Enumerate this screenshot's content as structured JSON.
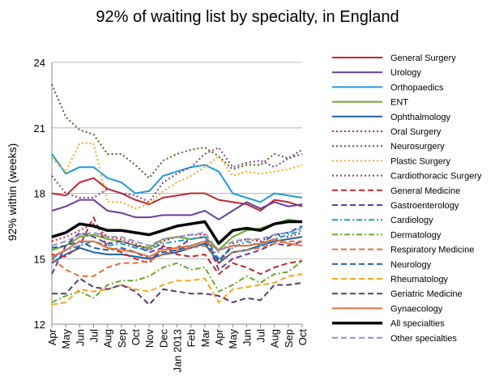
{
  "chart_data": {
    "type": "line",
    "title": "92% of waiting list by specialty, in England",
    "ylabel": "92% within (weeks)",
    "xlabel": "",
    "ylim": [
      12,
      24
    ],
    "yticks": [
      12,
      15,
      18,
      21,
      24
    ],
    "grid": "horizontal",
    "legend_position": "right",
    "x": [
      "Apr",
      "May",
      "Jun",
      "Jul",
      "Aug",
      "Sep",
      "Oct",
      "Nov",
      "Dec",
      "Jan 2013",
      "Feb",
      "Mar",
      "Apr",
      "May",
      "Jun",
      "Jul",
      "Aug",
      "Sep",
      "Oct"
    ],
    "series": [
      {
        "name": "General Surgery",
        "color": "#c0282b",
        "style": "solid",
        "width": 2,
        "values": [
          18.0,
          17.9,
          18.5,
          18.7,
          18.2,
          18.0,
          17.7,
          17.5,
          17.8,
          17.9,
          18.0,
          18.0,
          17.7,
          17.6,
          17.5,
          17.2,
          17.7,
          17.6,
          17.4
        ]
      },
      {
        "name": "Urology",
        "color": "#6a3d9a",
        "style": "solid",
        "width": 2,
        "values": [
          17.2,
          17.4,
          17.7,
          17.7,
          17.2,
          17.1,
          16.9,
          16.9,
          17.0,
          17.0,
          17.0,
          17.2,
          16.8,
          17.2,
          17.6,
          17.3,
          17.6,
          17.4,
          17.5
        ]
      },
      {
        "name": "Orthopaedics",
        "color": "#1f9ad6",
        "style": "solid",
        "width": 2,
        "values": [
          19.8,
          18.9,
          19.2,
          19.2,
          18.7,
          18.5,
          18.0,
          18.1,
          18.8,
          19.0,
          19.2,
          19.3,
          19.0,
          18.0,
          17.8,
          17.6,
          18.0,
          17.9,
          17.8
        ]
      },
      {
        "name": "ENT",
        "color": "#6aaa2e",
        "style": "solid",
        "width": 2,
        "values": [
          15.4,
          15.6,
          16.0,
          16.1,
          15.9,
          15.8,
          15.6,
          15.5,
          15.9,
          16.0,
          15.9,
          16.0,
          15.4,
          16.0,
          16.3,
          16.4,
          16.6,
          16.8,
          16.7
        ]
      },
      {
        "name": "Ophthalmology",
        "color": "#1f5ea8",
        "style": "solid",
        "width": 2,
        "values": [
          14.8,
          15.2,
          15.5,
          15.3,
          15.2,
          15.2,
          15.1,
          15.0,
          15.2,
          15.3,
          15.5,
          15.7,
          14.8,
          15.3,
          15.4,
          15.6,
          15.8,
          15.9,
          16.0
        ]
      },
      {
        "name": "Oral Surgery",
        "color": "#c0282b",
        "style": "dot",
        "width": 2,
        "values": [
          15.8,
          16.0,
          16.3,
          16.6,
          16.0,
          15.9,
          15.7,
          15.4,
          15.8,
          16.0,
          16.1,
          16.1,
          14.8,
          15.7,
          15.9,
          15.8,
          16.1,
          16.0,
          16.2
        ]
      },
      {
        "name": "Neurosurgery",
        "color": "#4f6228",
        "style": "dot",
        "width": 2,
        "values": [
          23.0,
          21.5,
          20.9,
          20.7,
          19.8,
          19.8,
          19.3,
          18.7,
          19.5,
          19.8,
          20.0,
          20.1,
          19.7,
          19.1,
          19.3,
          19.3,
          19.8,
          19.6,
          20.0
        ]
      },
      {
        "name": "Plastic Surgery",
        "color": "#f5a623",
        "style": "dot",
        "width": 2,
        "values": [
          19.6,
          19.0,
          20.3,
          20.3,
          17.6,
          17.6,
          17.3,
          17.5,
          18.1,
          18.5,
          18.8,
          19.2,
          19.7,
          18.8,
          19.0,
          18.9,
          19.0,
          19.1,
          19.3
        ]
      },
      {
        "name": "Cardiothoracic Surgery",
        "color": "#7b3f9e",
        "style": "dot",
        "width": 2,
        "values": [
          18.8,
          18.0,
          17.8,
          17.8,
          18.2,
          18.0,
          17.9,
          17.6,
          18.5,
          18.9,
          19.2,
          19.8,
          20.1,
          19.2,
          19.4,
          19.5,
          19.2,
          19.6,
          19.8
        ]
      },
      {
        "name": "General Medicine",
        "color": "#c0282b",
        "style": "dash",
        "width": 2,
        "values": [
          15.2,
          15.1,
          15.6,
          16.9,
          15.5,
          15.3,
          15.0,
          14.8,
          15.6,
          15.2,
          15.1,
          15.2,
          14.3,
          14.8,
          14.6,
          14.3,
          14.6,
          14.8,
          14.9
        ]
      },
      {
        "name": "Gastroenterology",
        "color": "#6a3d9a",
        "style": "dash",
        "width": 2,
        "values": [
          14.3,
          15.6,
          16.2,
          16.0,
          15.7,
          15.8,
          15.6,
          15.3,
          15.5,
          15.5,
          15.9,
          16.0,
          14.5,
          15.0,
          15.2,
          15.4,
          15.7,
          15.6,
          15.8
        ]
      },
      {
        "name": "Cardiology",
        "color": "#1f9ad6",
        "style": "dashdot",
        "width": 2,
        "values": [
          15.0,
          15.4,
          15.6,
          15.8,
          15.6,
          15.7,
          15.5,
          15.4,
          15.7,
          15.8,
          15.9,
          16.0,
          15.0,
          15.5,
          15.8,
          15.6,
          15.9,
          16.1,
          16.3
        ]
      },
      {
        "name": "Dermatology",
        "color": "#6aaa2e",
        "style": "dashdot",
        "width": 2,
        "values": [
          13.0,
          13.3,
          13.5,
          13.2,
          13.8,
          14.0,
          14.0,
          14.2,
          14.6,
          14.8,
          14.5,
          14.6,
          13.5,
          13.8,
          14.2,
          13.9,
          14.3,
          14.4,
          14.9
        ]
      },
      {
        "name": "Respiratory Medicine",
        "color": "#e2703a",
        "style": "dash",
        "width": 2,
        "values": [
          15.0,
          14.5,
          14.2,
          14.2,
          14.6,
          14.8,
          14.8,
          14.9,
          15.2,
          15.4,
          15.5,
          15.6,
          14.9,
          15.3,
          15.4,
          15.5,
          15.7,
          15.8,
          15.8
        ]
      },
      {
        "name": "Neurology",
        "color": "#1f5ea8",
        "style": "dash",
        "width": 2,
        "values": [
          15.5,
          15.6,
          15.8,
          15.5,
          15.4,
          15.5,
          15.3,
          15.0,
          15.3,
          15.4,
          15.6,
          15.8,
          14.9,
          15.6,
          15.6,
          15.7,
          16.1,
          16.2,
          16.5
        ]
      },
      {
        "name": "Rheumatology",
        "color": "#f5a623",
        "style": "dash",
        "width": 2,
        "values": [
          12.9,
          13.0,
          13.6,
          13.5,
          13.6,
          13.8,
          13.6,
          13.5,
          13.8,
          14.0,
          14.0,
          14.1,
          13.0,
          13.6,
          13.7,
          13.8,
          13.9,
          14.2,
          14.3
        ]
      },
      {
        "name": "Geriatric Medicine",
        "color": "#5b3a6e",
        "style": "dash",
        "width": 2,
        "values": [
          13.4,
          13.4,
          14.1,
          13.7,
          13.6,
          13.8,
          13.5,
          12.9,
          13.6,
          13.5,
          13.4,
          13.4,
          13.3,
          13.0,
          13.2,
          13.1,
          13.8,
          13.8,
          13.9
        ]
      },
      {
        "name": "Gynaecology",
        "color": "#e2703a",
        "style": "solid",
        "width": 2,
        "values": [
          15.1,
          15.4,
          15.8,
          15.8,
          15.5,
          15.4,
          15.3,
          15.1,
          15.4,
          15.5,
          15.6,
          15.8,
          15.4,
          15.6,
          15.6,
          15.7,
          15.9,
          15.7,
          15.6
        ]
      },
      {
        "name": "All specialties",
        "color": "#000000",
        "style": "solid",
        "width": 3.5,
        "values": [
          16.0,
          16.2,
          16.6,
          16.5,
          16.3,
          16.3,
          16.2,
          16.1,
          16.3,
          16.5,
          16.6,
          16.7,
          15.7,
          16.3,
          16.4,
          16.3,
          16.6,
          16.7,
          16.7
        ]
      },
      {
        "name": "Other specialties",
        "color": "#8f8fc9",
        "style": "dash",
        "width": 2,
        "values": [
          15.6,
          15.8,
          16.1,
          16.2,
          16.0,
          16.0,
          15.8,
          15.6,
          15.9,
          16.0,
          16.1,
          16.2,
          15.3,
          15.8,
          15.9,
          15.9,
          16.1,
          16.2,
          16.4
        ]
      }
    ]
  }
}
